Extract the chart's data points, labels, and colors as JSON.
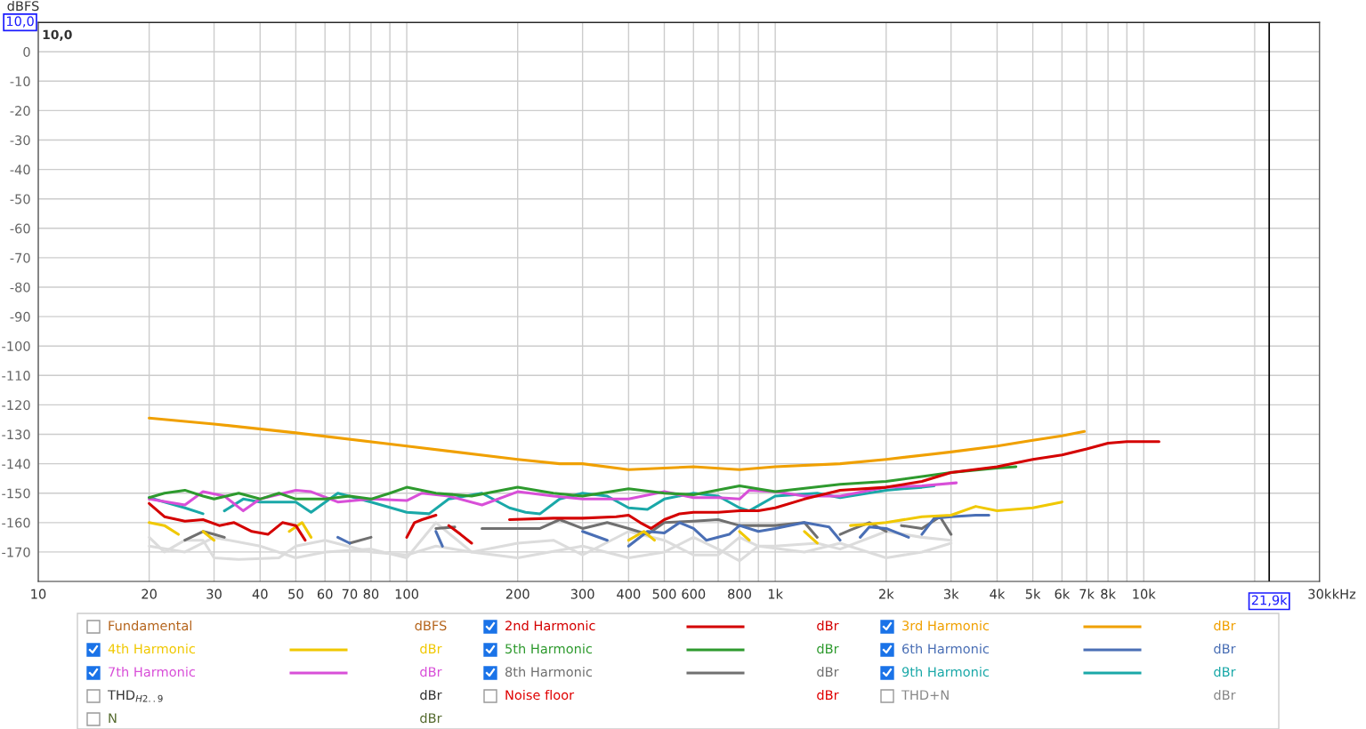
{
  "chart_data": {
    "type": "line",
    "ylabel": "dBFS",
    "log": "x",
    "grid": true,
    "legend": "bottom",
    "xlim": [
      10,
      30000
    ],
    "ylim": [
      -180,
      10
    ],
    "xticks": [
      10,
      20,
      30,
      40,
      50,
      60,
      70,
      80,
      {
        "value": 90,
        "label": null
      },
      100,
      200,
      300,
      400,
      500,
      600,
      {
        "value": 700,
        "label": null
      },
      800,
      {
        "value": 900,
        "label": null
      },
      {
        "value": 1000,
        "label": "1k"
      },
      {
        "value": 2000,
        "label": "2k"
      },
      {
        "value": 3000,
        "label": "3k"
      },
      {
        "value": 4000,
        "label": "4k"
      },
      {
        "value": 5000,
        "label": "5k"
      },
      {
        "value": 6000,
        "label": "6k"
      },
      {
        "value": 7000,
        "label": "7k"
      },
      {
        "value": 8000,
        "label": "8k"
      },
      {
        "value": 9000,
        "label": null
      },
      {
        "value": 10000,
        "label": "10k"
      },
      {
        "value": 20000,
        "label": null
      },
      {
        "value": 30000,
        "label": "30k"
      }
    ],
    "xlabel": "kHz",
    "yticks": [
      0,
      -10,
      -20,
      -30,
      -40,
      -50,
      -60,
      -70,
      -80,
      -90,
      -100,
      -110,
      -120,
      -130,
      -140,
      -150,
      -160,
      -170
    ],
    "ref_lines": [
      {
        "axis": "x",
        "value": 21900,
        "label": "21,9k",
        "color": "#000000"
      },
      {
        "axis": "y",
        "value": 10,
        "label": "10,0",
        "color": "#000000"
      }
    ],
    "annotations": [
      {
        "text": "10,0",
        "x": 10,
        "y": 10
      },
      "Fundamental",
      "THD$_{H2..9}$",
      "Noise floor",
      "THD+N",
      "N",
      "dBFS",
      "dBr",
      "dBr",
      "dBr",
      "dBr",
      "dBr",
      "dBr",
      "dBr",
      "dBr",
      "dBr",
      "dBr",
      "dBr",
      "dBr"
    ],
    "series": [
      {
        "name": "2nd Harmonic",
        "color": "#d40000",
        "x": [
          20,
          22,
          25,
          28,
          31,
          34,
          38,
          42,
          46,
          50,
          53,
          60,
          100,
          105,
          110,
          120,
          125,
          130,
          140,
          150,
          170,
          190,
          250,
          300,
          370,
          400,
          430,
          460,
          500,
          550,
          600,
          700,
          800,
          900,
          1000,
          1200,
          1500,
          2000,
          2500,
          3000,
          4000,
          5000,
          6000,
          7000,
          8000,
          9000,
          10000,
          11000
        ],
        "values": [
          -153.5,
          -158,
          -159.5,
          -159,
          -161,
          -160,
          -163,
          -164,
          -160,
          -161,
          -166,
          null,
          -165,
          -160,
          -159,
          -157.5,
          null,
          -161,
          -164,
          -167,
          null,
          -159,
          -158.5,
          -158.5,
          -158,
          -157.5,
          -160,
          -162,
          -159,
          -157,
          -156.5,
          -156.5,
          -156,
          -156,
          -155,
          -152,
          -149,
          -148,
          -146,
          -143,
          -141,
          -138.5,
          -137,
          -135,
          -133,
          -132.5,
          -132.5,
          -132.5
        ]
      },
      {
        "name": "3rd Harmonic",
        "color": "#f0a000",
        "x": [
          20,
          30,
          50,
          100,
          200,
          260,
          300,
          400,
          500,
          600,
          800,
          1000,
          1500,
          2000,
          3000,
          4000,
          5000,
          6000,
          6900
        ],
        "values": [
          -124.5,
          -126.5,
          -129.5,
          -134,
          -138.5,
          -140,
          -140,
          -142,
          -141.5,
          -141,
          -142,
          -141,
          -140,
          -138.5,
          -136,
          -134,
          -132,
          -130.5,
          -129
        ]
      },
      {
        "name": "4th Harmonic",
        "color": "#f0c800",
        "x": [
          20,
          22,
          24,
          26,
          28,
          30,
          40,
          48,
          52,
          55,
          60,
          400,
          440,
          470,
          600,
          800,
          850,
          1000,
          1200,
          1300,
          1500,
          1600,
          1800,
          2000,
          2500,
          3000,
          3500,
          4000,
          5000,
          6000
        ],
        "values": [
          -160,
          -161,
          -164,
          null,
          -163,
          -166,
          null,
          -163,
          -160,
          -165,
          null,
          -166,
          -163,
          -166,
          null,
          -163,
          -166,
          null,
          -163,
          -167,
          null,
          -161,
          -160.5,
          -160,
          -158,
          -157.5,
          -154.5,
          -156,
          -155,
          -153
        ]
      },
      {
        "name": "5th Harmonic",
        "color": "#2e9a2e",
        "x": [
          20,
          22,
          25,
          28,
          30,
          35,
          40,
          45,
          50,
          60,
          70,
          80,
          90,
          100,
          120,
          150,
          200,
          250,
          300,
          400,
          500,
          600,
          800,
          1000,
          1500,
          2000,
          3000,
          4000,
          4500
        ],
        "values": [
          -151.5,
          -150,
          -149,
          -151,
          -152,
          -150,
          -152,
          -150,
          -152,
          -152,
          -151,
          -152,
          -150,
          -148,
          -150,
          -151,
          -148,
          -150,
          -151,
          -148.5,
          -150,
          -150.5,
          -147.5,
          -149.5,
          -147,
          -146,
          -143,
          -141.5,
          -141
        ]
      },
      {
        "name": "6th Harmonic",
        "color": "#4a6fb5",
        "x": [
          65,
          70,
          90,
          120,
          125,
          200,
          300,
          350,
          380,
          400,
          450,
          500,
          550,
          600,
          650,
          750,
          800,
          900,
          1000,
          1200,
          1400,
          1500,
          1600,
          1700,
          1800,
          2000,
          2300,
          2400,
          2500,
          2700,
          3000,
          3500,
          3800
        ],
        "values": [
          -165,
          -167,
          null,
          -163,
          -168,
          null,
          -163,
          -166,
          null,
          -168,
          -163,
          -163.5,
          -160,
          -162,
          -166,
          -164,
          -161,
          -163,
          -162,
          -160,
          -161.5,
          -166,
          null,
          -165,
          -161.5,
          -162,
          -165,
          null,
          -164,
          -158.5,
          -158,
          -157.5,
          -157.5
        ]
      },
      {
        "name": "7th Harmonic",
        "color": "#d84fd8",
        "x": [
          20,
          25,
          28,
          32,
          36,
          40,
          50,
          55,
          65,
          80,
          100,
          110,
          130,
          160,
          200,
          250,
          300,
          350,
          400,
          500,
          600,
          700,
          800,
          850,
          1000,
          1200,
          1500,
          2000,
          2500,
          3100
        ],
        "values": [
          -152,
          -154,
          -149.5,
          -151,
          -156,
          -152,
          -149,
          -149.5,
          -153,
          -152,
          -152.5,
          -150,
          -151,
          -154,
          -149.5,
          -151,
          -152,
          -152,
          -152,
          -149.5,
          -151.5,
          -151.5,
          -152,
          -149,
          -149.5,
          -151,
          -151,
          -148,
          -147.5,
          -146.5
        ]
      },
      {
        "name": "8th Harmonic",
        "color": "#707070",
        "x": [
          25,
          28,
          30,
          32,
          50,
          70,
          80,
          100,
          120,
          135,
          145,
          160,
          200,
          230,
          260,
          300,
          350,
          400,
          450,
          500,
          600,
          700,
          800,
          1000,
          1200,
          1300,
          1400,
          1500,
          1600,
          1800,
          2000,
          2100,
          2200,
          2500,
          2800,
          3000
        ],
        "values": [
          -166,
          -163,
          -164,
          -165,
          null,
          -167,
          -165,
          null,
          -162,
          -161.5,
          null,
          -162,
          -162,
          -162,
          -159,
          -162,
          -160,
          -162,
          -164,
          -160,
          -159.5,
          -159,
          -161,
          -161,
          -160,
          -165,
          null,
          -164,
          -162.5,
          -160,
          -163,
          null,
          -161,
          -162,
          -158,
          -164
        ]
      },
      {
        "name": "9th Harmonic",
        "color": "#1aa8a8",
        "x": [
          20,
          25,
          28,
          30,
          32,
          36,
          40,
          50,
          55,
          65,
          80,
          100,
          115,
          130,
          160,
          190,
          210,
          230,
          260,
          300,
          350,
          400,
          450,
          500,
          600,
          700,
          800,
          850,
          1000,
          1300,
          1500,
          2000,
          2500,
          2700
        ],
        "values": [
          -151.5,
          -155,
          -157,
          null,
          -156,
          -152,
          -153,
          -153,
          -156.5,
          -150,
          -153,
          -156.5,
          -157,
          -152,
          -150,
          -155,
          -156.5,
          -157,
          -152,
          -150,
          -151,
          -155,
          -155.5,
          -152,
          -150,
          -151,
          -155,
          -156,
          -151,
          -150,
          -151.5,
          -149,
          -148,
          -147.5
        ]
      },
      {
        "color": "#dcdcdc",
        "x": [
          20,
          22,
          25,
          28,
          30,
          35,
          45,
          50,
          60,
          80,
          100,
          120,
          150,
          200,
          250,
          300,
          400,
          500,
          600,
          700,
          800,
          900,
          1000,
          1300,
          1500,
          2000,
          2500,
          3000
        ],
        "values": [
          -165,
          -170,
          -166,
          -166,
          -172,
          -172.5,
          -172,
          -168,
          -166,
          -170,
          -171,
          -168,
          -170,
          -167,
          -166,
          -171,
          -163,
          -166,
          -171,
          -171,
          -165,
          -168,
          -168,
          -167,
          -169,
          -163,
          -165,
          -166
        ]
      },
      {
        "color": "#dcdcdc",
        "x": [
          20,
          25,
          30,
          40,
          50,
          60,
          80,
          100,
          120,
          150,
          200,
          300,
          400,
          500,
          600,
          700,
          800,
          900,
          1200,
          1500,
          2000,
          2500,
          3000
        ],
        "values": [
          -168,
          -170,
          -165,
          -168,
          -172,
          -170,
          -169,
          -172,
          -160,
          -170,
          -172,
          -168,
          -172,
          -170,
          -165,
          -169,
          -173,
          -168,
          -170,
          -167,
          -172,
          -170,
          -167
        ]
      }
    ]
  }
}
